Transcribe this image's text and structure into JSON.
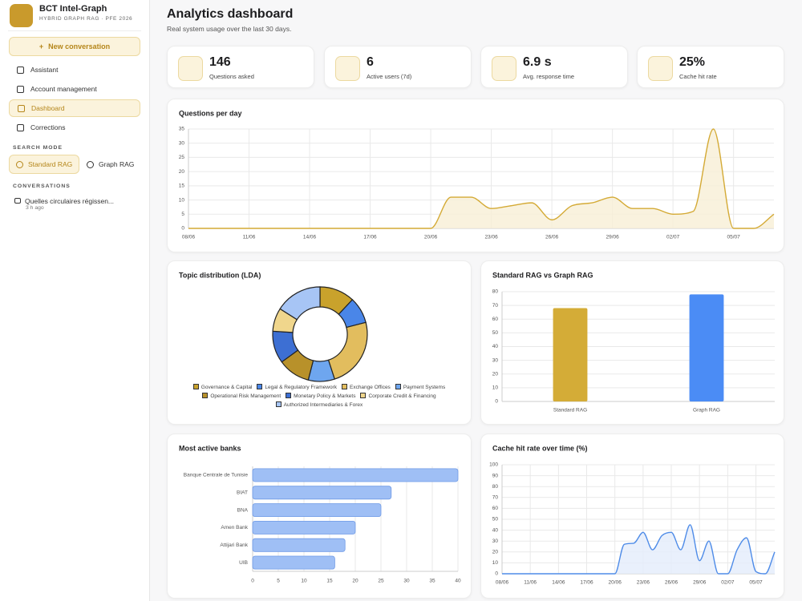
{
  "sidebar": {
    "brand": "BCT Intel-Graph",
    "brand_subtitle": "HYBRID GRAPH RAG · PFE 2026",
    "new_button": "New conversation",
    "nav": [
      {
        "label": "Assistant",
        "active": false
      },
      {
        "label": "Account management",
        "active": false
      },
      {
        "label": "Dashboard",
        "active": true
      },
      {
        "label": "Corrections",
        "active": false
      }
    ],
    "search_mode_label": "SEARCH MODE",
    "modes": [
      {
        "label": "Standard RAG",
        "active": true
      },
      {
        "label": "Graph RAG",
        "active": false
      }
    ],
    "conversations_label": "CONVERSATIONS",
    "conversations": [
      {
        "title": "Quelles circulaires régissen...",
        "time": "3 h ago"
      }
    ]
  },
  "header": {
    "title": "Analytics dashboard",
    "subtitle": "Real system usage over the last 30 days."
  },
  "stats": [
    {
      "value": "146",
      "label": "Questions asked"
    },
    {
      "value": "6",
      "label": "Active users (7d)"
    },
    {
      "value": "6.9 s",
      "label": "Avg. response time"
    },
    {
      "value": "25%",
      "label": "Cache hit rate"
    }
  ],
  "charts": [
    {
      "type": "line",
      "title": "Questions per day",
      "color": "#d4aa35",
      "fill": "#f8efd6",
      "grid": true,
      "categories": [
        "08/06",
        null,
        null,
        "11/06",
        null,
        null,
        "14/06",
        null,
        null,
        "17/06",
        null,
        null,
        "20/06",
        null,
        null,
        "23/06",
        null,
        null,
        "26/06",
        null,
        null,
        "29/06",
        null,
        null,
        "02/07",
        null,
        null,
        "05/07",
        null,
        null
      ],
      "values": [
        0,
        0,
        0,
        0,
        0,
        0,
        0,
        0,
        0,
        0,
        0,
        0,
        0,
        11,
        11,
        7,
        8,
        9,
        3,
        8,
        9,
        11,
        7,
        7,
        5,
        6,
        35,
        0,
        0,
        5
      ],
      "ylim": [
        0,
        35
      ],
      "yticks": [
        0,
        5,
        10,
        15,
        20,
        25,
        30,
        35
      ]
    },
    {
      "type": "donut",
      "title": "Topic distribution (LDA)",
      "legend": "bottom",
      "categories": [
        "Governance & Capital",
        "Legal & Regulatory Framework",
        "Exchange Offices",
        "Payment Systems",
        "Operational Risk Management",
        "Monetary Policy & Markets",
        "Corporate Credit & Financing",
        "Authorized Intermediaries & Forex"
      ],
      "values": [
        12,
        9,
        24,
        9,
        11,
        11,
        8,
        16
      ],
      "colors": [
        "#c9a22c",
        "#4a86e8",
        "#e2bd5e",
        "#6ea6ef",
        "#b8912a",
        "#3d6fd3",
        "#f0d68c",
        "#a7c5f5"
      ]
    },
    {
      "type": "bar",
      "title": "Standard RAG vs Graph RAG",
      "grid": true,
      "categories": [
        "Standard RAG",
        "Graph RAG"
      ],
      "values": [
        68,
        78
      ],
      "colors": [
        "#d4ac37",
        "#4b8cf5"
      ],
      "ylim": [
        0,
        80
      ],
      "yticks": [
        0,
        10,
        20,
        30,
        40,
        50,
        60,
        70,
        80
      ]
    },
    {
      "type": "bar",
      "orientation": "horizontal",
      "title": "Most active banks",
      "grid": true,
      "color": "#9fbff5",
      "stroke": "#6f9ae6",
      "categories": [
        "Banque Centrale de Tunisie",
        "BIAT",
        "BNA",
        "Amen Bank",
        "Attijari Bank",
        "UIB"
      ],
      "values": [
        40,
        27,
        25,
        20,
        18,
        16
      ],
      "xlim": [
        0,
        40
      ],
      "xticks": [
        0,
        5,
        10,
        15,
        20,
        25,
        30,
        35,
        40
      ]
    },
    {
      "type": "line",
      "title": "Cache hit rate over time (%)",
      "color": "#4f8ce8",
      "fill": "#e3ecfb",
      "grid": true,
      "categories": [
        "08/06",
        null,
        null,
        "11/06",
        null,
        null,
        "14/06",
        null,
        null,
        "17/06",
        null,
        null,
        "20/06",
        null,
        null,
        "23/06",
        null,
        null,
        "26/06",
        null,
        null,
        "29/06",
        null,
        null,
        "02/07",
        null,
        null,
        "05/07",
        null,
        null
      ],
      "values": [
        0,
        0,
        0,
        0,
        0,
        0,
        0,
        0,
        0,
        0,
        0,
        0,
        0,
        27,
        28,
        38,
        22,
        35,
        38,
        22,
        45,
        12,
        30,
        0,
        0,
        22,
        33,
        2,
        0,
        20
      ],
      "ylim": [
        0,
        100
      ],
      "yticks": [
        0,
        10,
        20,
        30,
        40,
        50,
        60,
        70,
        80,
        90,
        100
      ]
    }
  ]
}
